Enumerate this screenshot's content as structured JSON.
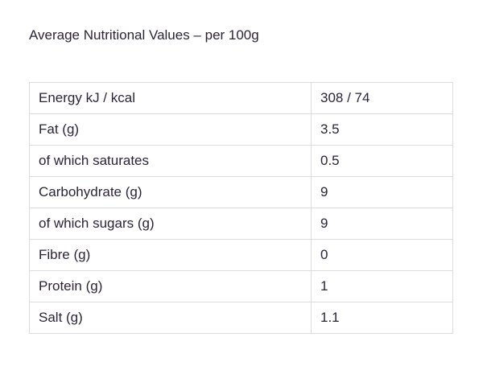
{
  "heading": "Average Nutritional Values – per 100g",
  "rows": [
    {
      "name": "Energy kJ / kcal",
      "value": "308 / 74"
    },
    {
      "name": "Fat (g)",
      "value": "3.5"
    },
    {
      "name": "of which saturates",
      "value": "0.5"
    },
    {
      "name": "Carbohydrate (g)",
      "value": "9"
    },
    {
      "name": "of which sugars (g)",
      "value": "9"
    },
    {
      "name": "Fibre (g)",
      "value": "0"
    },
    {
      "name": "Protein (g)",
      "value": "1"
    },
    {
      "name": "Salt (g)",
      "value": "1.1"
    }
  ]
}
